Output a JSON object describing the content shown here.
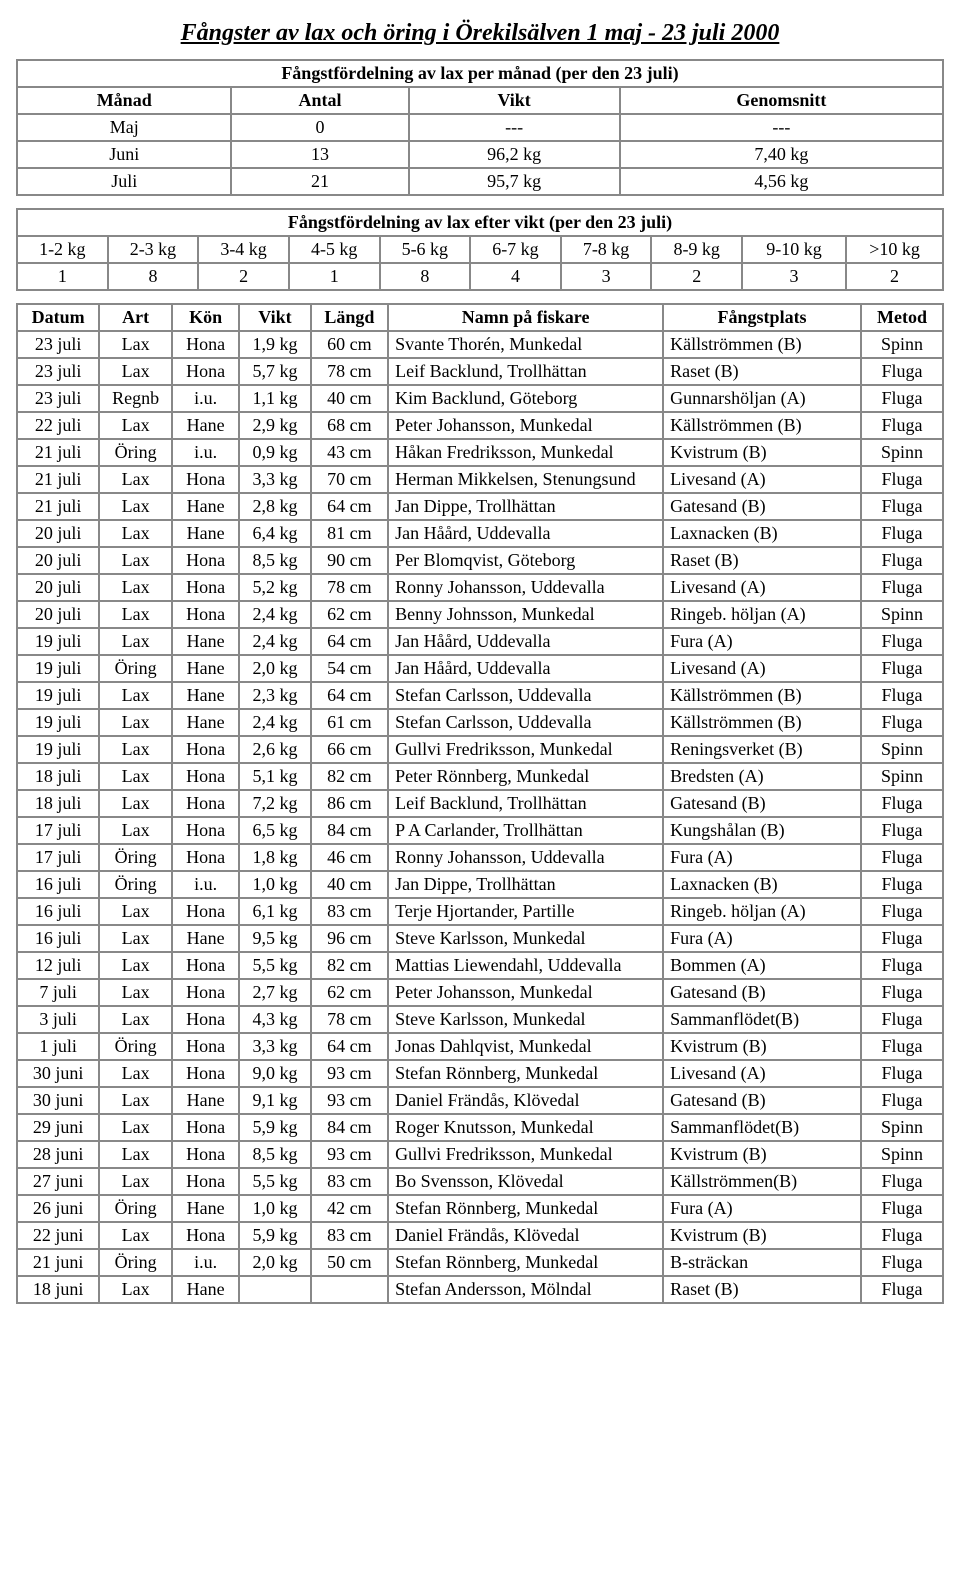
{
  "title": "Fångster av lax och öring i Örekilsälven 1 maj - 23 juli 2000",
  "month_table": {
    "caption": "Fångstfördelning av lax per månad (per den 23 juli)",
    "headers": [
      "Månad",
      "Antal",
      "Vikt",
      "Genomsnitt"
    ],
    "rows": [
      [
        "Maj",
        "0",
        "---",
        "---"
      ],
      [
        "Juni",
        "13",
        "96,2 kg",
        "7,40 kg"
      ],
      [
        "Juli",
        "21",
        "95,7 kg",
        "4,56 kg"
      ]
    ]
  },
  "weight_table": {
    "caption": "Fångstfördelning av lax efter vikt (per den 23 juli)",
    "headers": [
      "1-2 kg",
      "2-3 kg",
      "3-4 kg",
      "4-5 kg",
      "5-6 kg",
      "6-7 kg",
      "7-8 kg",
      "8-9 kg",
      "9-10 kg",
      ">10 kg"
    ],
    "values": [
      "1",
      "8",
      "2",
      "1",
      "8",
      "4",
      "3",
      "2",
      "3",
      "2"
    ]
  },
  "main_table": {
    "headers": [
      "Datum",
      "Art",
      "Kön",
      "Vikt",
      "Längd",
      "Namn på fiskare",
      "Fångstplats",
      "Metod"
    ],
    "rows": [
      [
        "23 juli",
        "Lax",
        "Hona",
        "1,9 kg",
        "60 cm",
        "Svante Thorén, Munkedal",
        "Källströmmen (B)",
        "Spinn"
      ],
      [
        "23 juli",
        "Lax",
        "Hona",
        "5,7 kg",
        "78 cm",
        "Leif Backlund, Trollhättan",
        "Raset (B)",
        "Fluga"
      ],
      [
        "23 juli",
        "Regnb",
        "i.u.",
        "1,1 kg",
        "40 cm",
        "Kim Backlund, Göteborg",
        "Gunnarshöljan (A)",
        "Fluga"
      ],
      [
        "22 juli",
        "Lax",
        "Hane",
        "2,9 kg",
        "68 cm",
        "Peter Johansson, Munkedal",
        "Källströmmen (B)",
        "Fluga"
      ],
      [
        "21 juli",
        "Öring",
        "i.u.",
        "0,9 kg",
        "43 cm",
        "Håkan Fredriksson, Munkedal",
        "Kvistrum (B)",
        "Spinn"
      ],
      [
        "21 juli",
        "Lax",
        "Hona",
        "3,3 kg",
        "70 cm",
        "Herman Mikkelsen, Stenungsund",
        "Livesand (A)",
        "Fluga"
      ],
      [
        "21 juli",
        "Lax",
        "Hane",
        "2,8 kg",
        "64 cm",
        "Jan Dippe, Trollhättan",
        "Gatesand (B)",
        "Fluga"
      ],
      [
        "20 juli",
        "Lax",
        "Hane",
        "6,4 kg",
        "81 cm",
        "Jan Håård, Uddevalla",
        "Laxnacken (B)",
        "Fluga"
      ],
      [
        "20 juli",
        "Lax",
        "Hona",
        "8,5 kg",
        "90 cm",
        "Per Blomqvist, Göteborg",
        "Raset (B)",
        "Fluga"
      ],
      [
        "20 juli",
        "Lax",
        "Hona",
        "5,2 kg",
        "78 cm",
        "Ronny Johansson, Uddevalla",
        "Livesand (A)",
        "Fluga"
      ],
      [
        "20 juli",
        "Lax",
        "Hona",
        "2,4 kg",
        "62 cm",
        "Benny Johnsson, Munkedal",
        "Ringeb. höljan (A)",
        "Spinn"
      ],
      [
        "19 juli",
        "Lax",
        "Hane",
        "2,4 kg",
        "64 cm",
        "Jan Håård, Uddevalla",
        "Fura (A)",
        "Fluga"
      ],
      [
        "19 juli",
        "Öring",
        "Hane",
        "2,0 kg",
        "54 cm",
        "Jan Håård, Uddevalla",
        "Livesand (A)",
        "Fluga"
      ],
      [
        "19 juli",
        "Lax",
        "Hane",
        "2,3 kg",
        "64 cm",
        "Stefan Carlsson, Uddevalla",
        "Källströmmen (B)",
        "Fluga"
      ],
      [
        "19 juli",
        "Lax",
        "Hane",
        "2,4 kg",
        "61 cm",
        "Stefan Carlsson, Uddevalla",
        "Källströmmen (B)",
        "Fluga"
      ],
      [
        "19 juli",
        "Lax",
        "Hona",
        "2,6 kg",
        "66 cm",
        "Gullvi Fredriksson, Munkedal",
        "Reningsverket (B)",
        "Spinn"
      ],
      [
        "18 juli",
        "Lax",
        "Hona",
        "5,1 kg",
        "82 cm",
        "Peter Rönnberg, Munkedal",
        "Bredsten (A)",
        "Spinn"
      ],
      [
        "18 juli",
        "Lax",
        "Hona",
        "7,2 kg",
        "86 cm",
        "Leif Backlund, Trollhättan",
        "Gatesand (B)",
        "Fluga"
      ],
      [
        "17 juli",
        "Lax",
        "Hona",
        "6,5 kg",
        "84 cm",
        "P A Carlander, Trollhättan",
        "Kungshålan (B)",
        "Fluga"
      ],
      [
        "17 juli",
        "Öring",
        "Hona",
        "1,8 kg",
        "46 cm",
        "Ronny Johansson, Uddevalla",
        "Fura (A)",
        "Fluga"
      ],
      [
        "16 juli",
        "Öring",
        "i.u.",
        "1,0 kg",
        "40 cm",
        "Jan Dippe, Trollhättan",
        "Laxnacken (B)",
        "Fluga"
      ],
      [
        "16 juli",
        "Lax",
        "Hona",
        "6,1 kg",
        "83 cm",
        "Terje Hjortander, Partille",
        "Ringeb. höljan (A)",
        "Fluga"
      ],
      [
        "16 juli",
        "Lax",
        "Hane",
        "9,5 kg",
        "96 cm",
        "Steve Karlsson, Munkedal",
        "Fura (A)",
        "Fluga"
      ],
      [
        "12 juli",
        "Lax",
        "Hona",
        "5,5 kg",
        "82 cm",
        "Mattias Liewendahl, Uddevalla",
        "Bommen (A)",
        "Fluga"
      ],
      [
        "7 juli",
        "Lax",
        "Hona",
        "2,7 kg",
        "62 cm",
        "Peter Johansson, Munkedal",
        "Gatesand (B)",
        "Fluga"
      ],
      [
        "3 juli",
        "Lax",
        "Hona",
        "4,3 kg",
        "78 cm",
        "Steve Karlsson, Munkedal",
        "Sammanflödet(B)",
        "Fluga"
      ],
      [
        "1 juli",
        "Öring",
        "Hona",
        "3,3 kg",
        "64 cm",
        "Jonas Dahlqvist, Munkedal",
        "Kvistrum (B)",
        "Fluga"
      ],
      [
        "30 juni",
        "Lax",
        "Hona",
        "9,0 kg",
        "93 cm",
        "Stefan Rönnberg, Munkedal",
        "Livesand (A)",
        "Fluga"
      ],
      [
        "30 juni",
        "Lax",
        "Hane",
        "9,1 kg",
        "93 cm",
        "Daniel Frändås, Klövedal",
        "Gatesand (B)",
        "Fluga"
      ],
      [
        "29 juni",
        "Lax",
        "Hona",
        "5,9 kg",
        "84 cm",
        "Roger Knutsson, Munkedal",
        "Sammanflödet(B)",
        "Spinn"
      ],
      [
        "28 juni",
        "Lax",
        "Hona",
        "8,5 kg",
        "93 cm",
        "Gullvi Fredriksson, Munkedal",
        "Kvistrum (B)",
        "Spinn"
      ],
      [
        "27 juni",
        "Lax",
        "Hona",
        "5,5 kg",
        "83 cm",
        "Bo Svensson, Klövedal",
        "Källströmmen(B)",
        "Fluga"
      ],
      [
        "26 juni",
        "Öring",
        "Hane",
        "1,0 kg",
        "42 cm",
        "Stefan Rönnberg, Munkedal",
        "Fura (A)",
        "Fluga"
      ],
      [
        "22 juni",
        "Lax",
        "Hona",
        "5,9 kg",
        "83 cm",
        "Daniel Frändås, Klövedal",
        "Kvistrum (B)",
        "Fluga"
      ],
      [
        "21 juni",
        "Öring",
        "i.u.",
        "2,0 kg",
        "50 cm",
        "Stefan Rönnberg, Munkedal",
        "B-sträckan",
        "Fluga"
      ],
      [
        "18 juni",
        "Lax",
        "Hane",
        "",
        "",
        "Stefan Andersson, Mölndal",
        "Raset (B)",
        "Fluga"
      ]
    ]
  },
  "col_widths": [
    "70",
    "60",
    "55",
    "60",
    "65",
    "280",
    "190",
    "70"
  ]
}
